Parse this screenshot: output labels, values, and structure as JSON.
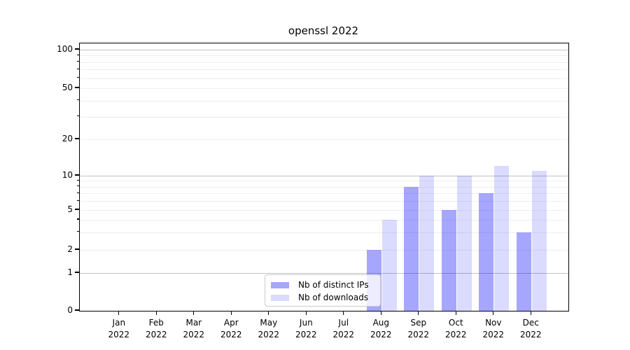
{
  "title": "openssl 2022",
  "legend": {
    "entries": [
      {
        "label": "Nb of distinct IPs",
        "color": "rgba(0,0,255,0.35)"
      },
      {
        "label": "Nb of downloads",
        "color": "rgba(0,0,255,0.14)"
      }
    ]
  },
  "colors": {
    "bar_distinct_ips": "rgba(0,0,255,0.35)",
    "bar_downloads": "rgba(0,0,255,0.14)",
    "gridline_major": "#c2c2c2",
    "gridline_minor": "#efefef",
    "axis_spine": "#000000",
    "legend_border": "#cccccc"
  },
  "chart_data": {
    "type": "bar",
    "title": "openssl 2022",
    "categories": [
      "Jan 2022",
      "Feb 2022",
      "Mar 2022",
      "Apr 2022",
      "May 2022",
      "Jun 2022",
      "Jul 2022",
      "Aug 2022",
      "Sep 2022",
      "Oct 2022",
      "Nov 2022",
      "Dec 2022"
    ],
    "x_tick_labels": [
      {
        "month": "Jan",
        "year": "2022"
      },
      {
        "month": "Feb",
        "year": "2022"
      },
      {
        "month": "Mar",
        "year": "2022"
      },
      {
        "month": "Apr",
        "year": "2022"
      },
      {
        "month": "May",
        "year": "2022"
      },
      {
        "month": "Jun",
        "year": "2022"
      },
      {
        "month": "Jul",
        "year": "2022"
      },
      {
        "month": "Aug",
        "year": "2022"
      },
      {
        "month": "Sep",
        "year": "2022"
      },
      {
        "month": "Oct",
        "year": "2022"
      },
      {
        "month": "Nov",
        "year": "2022"
      },
      {
        "month": "Dec",
        "year": "2022"
      }
    ],
    "series": [
      {
        "name": "Nb of distinct IPs",
        "values": [
          0,
          0,
          0,
          0,
          0,
          0,
          0,
          2,
          8,
          5,
          7,
          3
        ]
      },
      {
        "name": "Nb of downloads",
        "values": [
          0,
          0,
          0,
          0,
          0,
          0,
          0,
          4,
          10,
          10,
          12,
          11
        ]
      }
    ],
    "xlabel": "",
    "ylabel": "",
    "y_axis": {
      "scale": "asinh-like (log above 1, linear 0-1)",
      "tick_labels": [
        100,
        50,
        20,
        10,
        5,
        2,
        1,
        0
      ],
      "major_grid_values": [
        1,
        10,
        100
      ],
      "minor_grid_values": [
        2,
        3,
        4,
        5,
        6,
        7,
        8,
        9,
        20,
        30,
        40,
        50,
        60,
        70,
        80,
        90
      ],
      "minor_tick_values": [
        3,
        4,
        6,
        7,
        8,
        9,
        30,
        40,
        60,
        70,
        80,
        90
      ],
      "range": [
        0,
        112
      ]
    },
    "grid": true,
    "legend_position": "inside lower-center-left of axes"
  }
}
